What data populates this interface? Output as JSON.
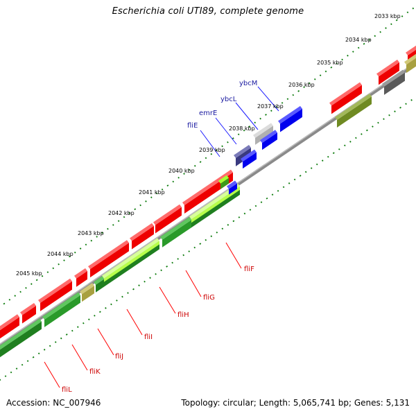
{
  "title": "Escherichia coli UTI89, complete genome",
  "accession": "Accession: NC_007946",
  "summary": "Topology: circular; Length: 5,065,741 bp; Genes: 5,131",
  "colors": {
    "backbone": "#8c8c8c",
    "tick": "#007a00",
    "forward_cds": "#ff0000",
    "reverse_cds": "#228b22",
    "highlight": "#a6ff33",
    "olive": "#7a8a2a",
    "blue_cds": "#0000ff",
    "navy_cds": "#3a3a80",
    "gray_cds": "#b0b0b0",
    "label_red": "#cc0000",
    "label_blue": "#1a1aa0"
  },
  "kbp_labels": [
    {
      "label": "2033 kbp"
    },
    {
      "label": "2034 kbp"
    },
    {
      "label": "2035 kbp"
    },
    {
      "label": "2036 kbp"
    },
    {
      "label": "2037 kbp"
    },
    {
      "label": "2038 kbp"
    },
    {
      "label": "2039 kbp"
    },
    {
      "label": "2040 kbp"
    },
    {
      "label": "2041 kbp"
    },
    {
      "label": "2042 kbp"
    },
    {
      "label": "2043 kbp"
    },
    {
      "label": "2044 kbp"
    },
    {
      "label": "2045 kbp"
    }
  ],
  "gene_labels_reverse": [
    "fliF",
    "fliG",
    "fliH",
    "fliI",
    "fliJ",
    "fliK",
    "fliL"
  ],
  "gene_labels_forward": [
    "ybcM",
    "ybcL",
    "emrE",
    "fliE"
  ]
}
